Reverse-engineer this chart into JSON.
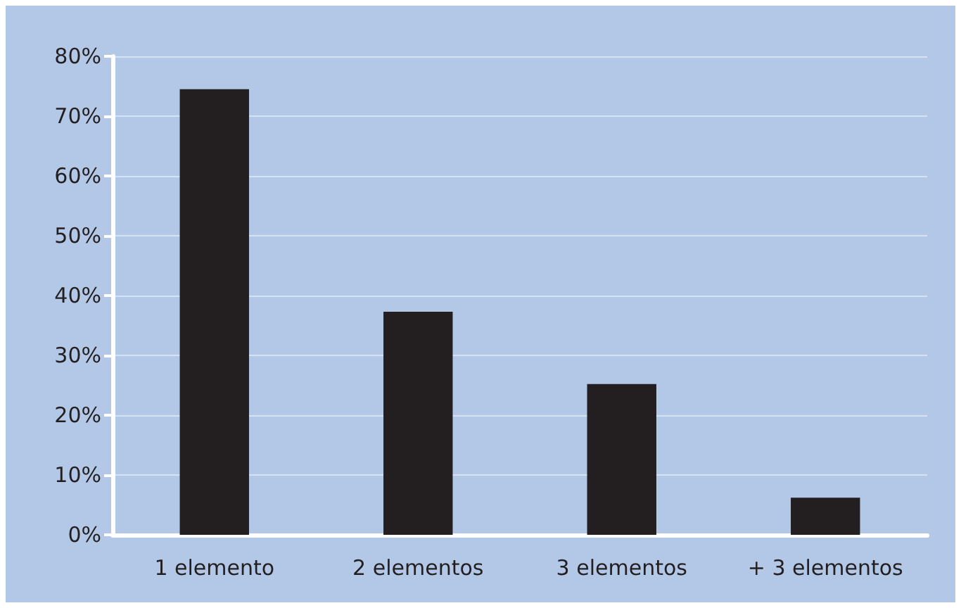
{
  "chart_data": {
    "type": "bar",
    "categories": [
      "1 elemento",
      "2 elementos",
      "3 elementos",
      "+ 3 elementos"
    ],
    "values": [
      74.5,
      37.3,
      25.2,
      6.2
    ],
    "color": "#231f20",
    "ylim": [
      0,
      80
    ],
    "yticks": [
      {
        "value": 0,
        "label": "0%"
      },
      {
        "value": 10,
        "label": "10%"
      },
      {
        "value": 20,
        "label": "20%"
      },
      {
        "value": 30,
        "label": "30%"
      },
      {
        "value": 40,
        "label": "40%"
      },
      {
        "value": 50,
        "label": "50%"
      },
      {
        "value": 60,
        "label": "60%"
      },
      {
        "value": 70,
        "label": "70%"
      },
      {
        "value": 80,
        "label": "80%"
      }
    ],
    "grid": "y"
  }
}
